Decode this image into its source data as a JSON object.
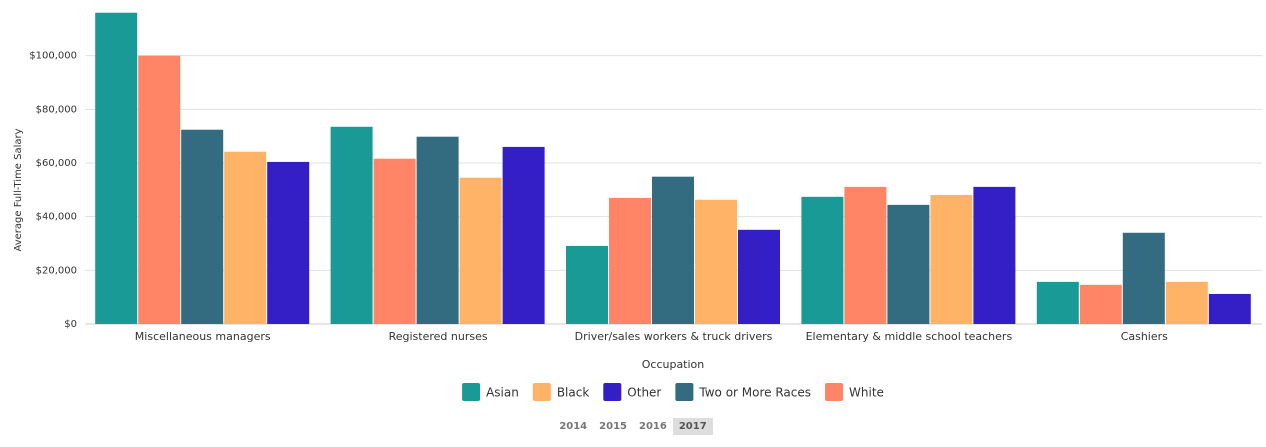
{
  "chart_data": {
    "type": "bar",
    "categories": [
      "Miscellaneous managers",
      "Registered nurses",
      "Driver/sales workers & truck drivers",
      "Elementary & middle school teachers",
      "Cashiers"
    ],
    "series": [
      {
        "name": "Asian",
        "color": "#1a9a96",
        "values": [
          116000,
          73500,
          29100,
          47400,
          15700
        ]
      },
      {
        "name": "White",
        "color": "#ff8566",
        "values": [
          100000,
          61600,
          47000,
          51100,
          14600
        ]
      },
      {
        "name": "Two or More Races",
        "color": "#336b80",
        "values": [
          72400,
          69800,
          54900,
          44400,
          34000
        ]
      },
      {
        "name": "Black",
        "color": "#ffb366",
        "values": [
          64200,
          54500,
          46300,
          48100,
          15700
        ]
      },
      {
        "name": "Other",
        "color": "#331fc5",
        "values": [
          60400,
          66000,
          35100,
          51100,
          11200
        ]
      }
    ],
    "x_label": "Occupation",
    "y_label": "Average Full-Time Salary",
    "ylim": [
      0,
      120000
    ],
    "yticks": [
      {
        "value": 0,
        "label": "$0"
      },
      {
        "value": 20000,
        "label": "$20,000"
      },
      {
        "value": 40000,
        "label": "$40,000"
      },
      {
        "value": 60000,
        "label": "$60,000"
      },
      {
        "value": 80000,
        "label": "$80,000"
      },
      {
        "value": 100000,
        "label": "$100,000"
      }
    ],
    "grid": true,
    "years": [
      "2014",
      "2015",
      "2016",
      "2017"
    ]
  }
}
